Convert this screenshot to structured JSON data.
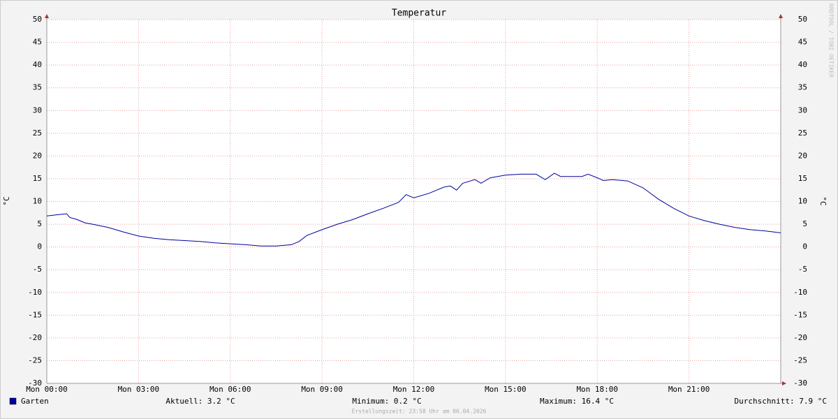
{
  "chart_data": {
    "type": "line",
    "title": "Temperatur",
    "y_label": "°C",
    "watermark": "RRDTOOL / TOBI OETIKER",
    "x": [
      0,
      0.25,
      0.5,
      0.65,
      0.75,
      1,
      1.25,
      1.5,
      2,
      2.5,
      3,
      3.5,
      4,
      4.5,
      5,
      5.5,
      6,
      6.5,
      7,
      7.5,
      8,
      8.25,
      8.5,
      9,
      9.5,
      10,
      10.5,
      11,
      11.5,
      11.75,
      12,
      12.5,
      13,
      13.2,
      13.4,
      13.6,
      14,
      14.2,
      14.5,
      15,
      15.5,
      16,
      16.3,
      16.6,
      16.8,
      17,
      17.5,
      17.7,
      18,
      18.2,
      18.5,
      19,
      19.5,
      20,
      20.5,
      21,
      21.5,
      22,
      22.5,
      23,
      23.5,
      24
    ],
    "xlim": [
      0,
      24
    ],
    "xticks": [
      {
        "value": 0,
        "label": "Mon 00:00"
      },
      {
        "value": 3,
        "label": "Mon 03:00"
      },
      {
        "value": 6,
        "label": "Mon 06:00"
      },
      {
        "value": 9,
        "label": "Mon 09:00"
      },
      {
        "value": 12,
        "label": "Mon 12:00"
      },
      {
        "value": 15,
        "label": "Mon 15:00"
      },
      {
        "value": 18,
        "label": "Mon 18:00"
      },
      {
        "value": 21,
        "label": "Mon 21:00"
      }
    ],
    "ylim": [
      -30,
      50
    ],
    "yticks": [
      -30,
      -25,
      -20,
      -15,
      -10,
      -5,
      0,
      5,
      10,
      15,
      20,
      25,
      30,
      35,
      40,
      45,
      50
    ],
    "grid": true,
    "series": [
      {
        "name": "Garten",
        "color": "#00009c",
        "values": [
          6.8,
          7.0,
          7.2,
          7.3,
          6.5,
          6.0,
          5.3,
          5.0,
          4.3,
          3.3,
          2.4,
          1.9,
          1.6,
          1.4,
          1.2,
          0.9,
          0.7,
          0.5,
          0.2,
          0.2,
          0.5,
          1.2,
          2.5,
          3.8,
          5.0,
          6.0,
          7.3,
          8.5,
          9.8,
          11.5,
          10.8,
          11.8,
          13.2,
          13.4,
          12.5,
          14.0,
          14.8,
          14.0,
          15.2,
          15.8,
          16.0,
          16.0,
          14.8,
          16.2,
          15.5,
          15.5,
          15.5,
          16.0,
          15.2,
          14.6,
          14.8,
          14.5,
          13.0,
          10.5,
          8.5,
          6.8,
          5.8,
          5.0,
          4.3,
          3.8,
          3.5,
          3.1
        ]
      }
    ],
    "legend_stats": [
      "Aktuell: 3.2 °C",
      "Minimum: 0.2 °C",
      "Maximum: 16.4 °C",
      "Durchschnitt: 7.9 °C"
    ],
    "footer": "Erstellungszeit: 23:58 Uhr am 06.04.2026"
  }
}
